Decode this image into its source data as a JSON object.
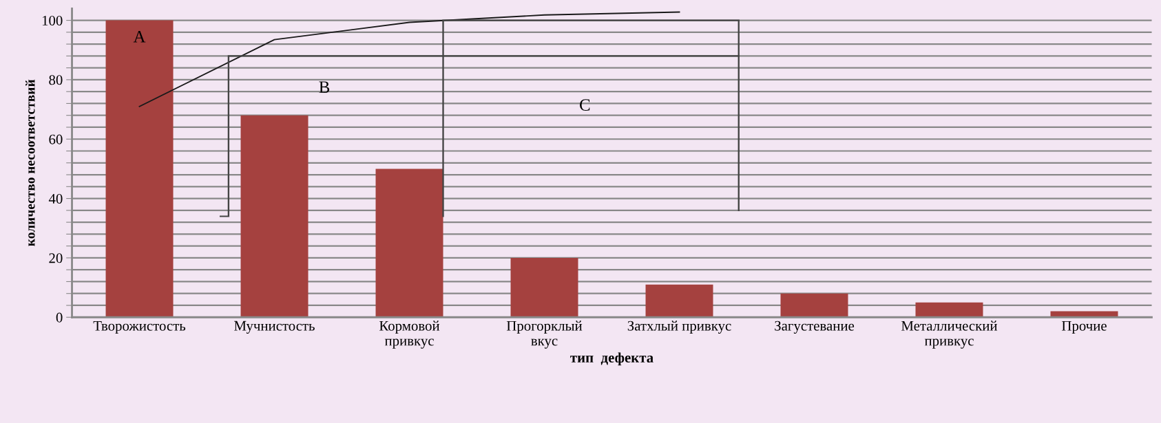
{
  "chart_data": {
    "type": "bar",
    "xlabel": "тип  дефекта",
    "ylabel": "количество несоответствий",
    "categories": [
      "Творожистость",
      "Мучнистость",
      "Кормовой\nпривкус",
      "Прогорклый\nвкус",
      "Затхлый привкус",
      "Загустевание",
      "Металлический\nпривкус",
      "Прочие"
    ],
    "series": [
      {
        "color": "#a5413f",
        "values": [
          100,
          68,
          50,
          20,
          11,
          8,
          5,
          2
        ]
      },
      {
        "type": "line",
        "color": "#1a1a1a",
        "values": [
          71,
          93.5,
          99.3,
          101.8,
          102.8,
          null,
          null,
          null
        ]
      }
    ],
    "annotations": [
      "A",
      "B",
      "C"
    ],
    "ylim": [
      0,
      104
    ],
    "yticks": [
      0,
      {
        "value": 4,
        "label": null
      },
      {
        "value": 8,
        "label": null
      },
      {
        "value": 12,
        "label": null
      },
      {
        "value": 16,
        "label": null
      },
      20,
      {
        "value": 24,
        "label": null
      },
      {
        "value": 28,
        "label": null
      },
      {
        "value": 32,
        "label": null
      },
      {
        "value": 36,
        "label": null
      },
      40,
      {
        "value": 44,
        "label": null
      },
      {
        "value": 48,
        "label": null
      },
      {
        "value": 52,
        "label": null
      },
      {
        "value": 56,
        "label": null
      },
      60,
      {
        "value": 64,
        "label": null
      },
      {
        "value": 68,
        "label": null
      },
      {
        "value": 72,
        "label": null
      },
      {
        "value": 76,
        "label": null
      },
      80,
      {
        "value": 84,
        "label": null
      },
      {
        "value": 88,
        "label": null
      },
      {
        "value": 92,
        "label": null
      },
      {
        "value": 96,
        "label": null
      },
      100
    ],
    "grid": "y",
    "legend": false,
    "marker": "none",
    "line_style": "solid"
  }
}
